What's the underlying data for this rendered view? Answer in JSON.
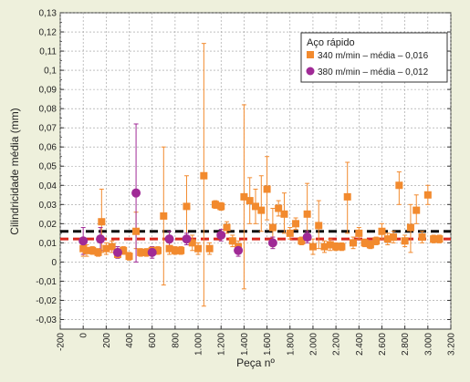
{
  "chart_data": {
    "type": "scatter",
    "xlabel": "Peça nº",
    "ylabel": "Cilindricidade média (mm)",
    "xlim": [
      -200,
      3200
    ],
    "ylim": [
      -0.035,
      0.13
    ],
    "x_ticks": [
      -200,
      0,
      200,
      400,
      600,
      800,
      1000,
      1200,
      1400,
      1600,
      1800,
      2000,
      2200,
      2400,
      2600,
      2800,
      3000,
      3200
    ],
    "x_tick_labels": [
      "-200",
      "0",
      "200",
      "400",
      "600",
      "800",
      "1.000",
      "1.200",
      "1.400",
      "1.600",
      "1.800",
      "2.000",
      "2.200",
      "2.400",
      "2.600",
      "2.800",
      "3.000",
      "3.200"
    ],
    "y_ticks": [
      -0.03,
      -0.02,
      -0.01,
      0,
      0.01,
      0.02,
      0.03,
      0.04,
      0.05,
      0.06,
      0.07,
      0.08,
      0.09,
      0.1,
      0.11,
      0.12,
      0.13
    ],
    "y_tick_labels": [
      "-0,03",
      "-0,02",
      "-0,01",
      "0",
      "0,01",
      "0,02",
      "0,03",
      "0,04",
      "0,05",
      "0,06",
      "0,07",
      "0,08",
      "0,09",
      "0,1",
      "0,11",
      "0,12",
      "0,13"
    ],
    "grid": true,
    "legend": {
      "title": "Aço rápido",
      "placement": "top-right"
    },
    "series": [
      {
        "name": "340 m/min – média – 0,016",
        "marker": "square",
        "color": "#f28a2e",
        "mean": 0.016,
        "points": [
          {
            "x": 0,
            "y": 0.007,
            "lo": 0.003,
            "hi": 0.012
          },
          {
            "x": 30,
            "y": 0.006,
            "lo": 0.003,
            "hi": 0.009
          },
          {
            "x": 80,
            "y": 0.006,
            "lo": 0.004,
            "hi": 0.008
          },
          {
            "x": 130,
            "y": 0.005,
            "lo": 0.003,
            "hi": 0.007
          },
          {
            "x": 160,
            "y": 0.021,
            "lo": 0.005,
            "hi": 0.038
          },
          {
            "x": 200,
            "y": 0.007,
            "lo": 0.004,
            "hi": 0.01
          },
          {
            "x": 250,
            "y": 0.008,
            "lo": 0.005,
            "hi": 0.011
          },
          {
            "x": 300,
            "y": 0.004,
            "lo": 0.002,
            "hi": 0.006
          },
          {
            "x": 350,
            "y": 0.006,
            "lo": 0.004,
            "hi": 0.008
          },
          {
            "x": 400,
            "y": 0.003,
            "lo": 0.001,
            "hi": 0.005
          },
          {
            "x": 460,
            "y": 0.016,
            "lo": 0.007,
            "hi": 0.026
          },
          {
            "x": 500,
            "y": 0.005,
            "lo": 0.003,
            "hi": 0.007
          },
          {
            "x": 550,
            "y": 0.005,
            "lo": 0.003,
            "hi": 0.007
          },
          {
            "x": 600,
            "y": 0.006,
            "lo": 0.004,
            "hi": 0.008
          },
          {
            "x": 650,
            "y": 0.006,
            "lo": 0.004,
            "hi": 0.008
          },
          {
            "x": 700,
            "y": 0.024,
            "lo": -0.012,
            "hi": 0.06
          },
          {
            "x": 750,
            "y": 0.007,
            "lo": 0.004,
            "hi": 0.01
          },
          {
            "x": 800,
            "y": 0.006,
            "lo": 0.004,
            "hi": 0.008
          },
          {
            "x": 850,
            "y": 0.006,
            "lo": 0.004,
            "hi": 0.008
          },
          {
            "x": 900,
            "y": 0.029,
            "lo": 0.012,
            "hi": 0.045
          },
          {
            "x": 950,
            "y": 0.01,
            "lo": 0.006,
            "hi": 0.014
          },
          {
            "x": 1000,
            "y": 0.007,
            "lo": 0.004,
            "hi": 0.01
          },
          {
            "x": 1050,
            "y": 0.045,
            "lo": -0.023,
            "hi": 0.114
          },
          {
            "x": 1100,
            "y": 0.007,
            "lo": 0.004,
            "hi": 0.01
          },
          {
            "x": 1150,
            "y": 0.03,
            "lo": 0.028,
            "hi": 0.032
          },
          {
            "x": 1200,
            "y": 0.029,
            "lo": 0.027,
            "hi": 0.031
          },
          {
            "x": 1250,
            "y": 0.018,
            "lo": 0.015,
            "hi": 0.021
          },
          {
            "x": 1300,
            "y": 0.011,
            "lo": 0.008,
            "hi": 0.014
          },
          {
            "x": 1350,
            "y": 0.008,
            "lo": 0.005,
            "hi": 0.011
          },
          {
            "x": 1400,
            "y": 0.034,
            "lo": -0.014,
            "hi": 0.082
          },
          {
            "x": 1450,
            "y": 0.032,
            "lo": 0.02,
            "hi": 0.044
          },
          {
            "x": 1500,
            "y": 0.029,
            "lo": 0.02,
            "hi": 0.038
          },
          {
            "x": 1550,
            "y": 0.027,
            "lo": 0.016,
            "hi": 0.045
          },
          {
            "x": 1600,
            "y": 0.038,
            "lo": 0.022,
            "hi": 0.055
          },
          {
            "x": 1650,
            "y": 0.018,
            "lo": 0.008,
            "hi": 0.028
          },
          {
            "x": 1700,
            "y": 0.028,
            "lo": 0.024,
            "hi": 0.032
          },
          {
            "x": 1750,
            "y": 0.025,
            "lo": 0.015,
            "hi": 0.036
          },
          {
            "x": 1800,
            "y": 0.015,
            "lo": 0.012,
            "hi": 0.018
          },
          {
            "x": 1850,
            "y": 0.02,
            "lo": 0.017,
            "hi": 0.023
          },
          {
            "x": 1900,
            "y": 0.011,
            "lo": 0.009,
            "hi": 0.013
          },
          {
            "x": 1950,
            "y": 0.025,
            "lo": 0.012,
            "hi": 0.041
          },
          {
            "x": 2000,
            "y": 0.008,
            "lo": 0.004,
            "hi": 0.012
          },
          {
            "x": 2050,
            "y": 0.019,
            "lo": 0.007,
            "hi": 0.032
          },
          {
            "x": 2100,
            "y": 0.008,
            "lo": 0.005,
            "hi": 0.011
          },
          {
            "x": 2150,
            "y": 0.009,
            "lo": 0.006,
            "hi": 0.012
          },
          {
            "x": 2200,
            "y": 0.008,
            "lo": 0.006,
            "hi": 0.01
          },
          {
            "x": 2250,
            "y": 0.008,
            "lo": 0.006,
            "hi": 0.01
          },
          {
            "x": 2300,
            "y": 0.034,
            "lo": 0.015,
            "hi": 0.052
          },
          {
            "x": 2350,
            "y": 0.01,
            "lo": 0.007,
            "hi": 0.013
          },
          {
            "x": 2400,
            "y": 0.015,
            "lo": 0.012,
            "hi": 0.018
          },
          {
            "x": 2450,
            "y": 0.01,
            "lo": 0.008,
            "hi": 0.012
          },
          {
            "x": 2500,
            "y": 0.009,
            "lo": 0.007,
            "hi": 0.011
          },
          {
            "x": 2550,
            "y": 0.011,
            "lo": 0.009,
            "hi": 0.013
          },
          {
            "x": 2600,
            "y": 0.016,
            "lo": 0.012,
            "hi": 0.02
          },
          {
            "x": 2650,
            "y": 0.012,
            "lo": 0.009,
            "hi": 0.015
          },
          {
            "x": 2700,
            "y": 0.013,
            "lo": 0.01,
            "hi": 0.016
          },
          {
            "x": 2750,
            "y": 0.04,
            "lo": 0.03,
            "hi": 0.047
          },
          {
            "x": 2800,
            "y": 0.011,
            "lo": 0.008,
            "hi": 0.014
          },
          {
            "x": 2850,
            "y": 0.018,
            "lo": 0.005,
            "hi": 0.03
          },
          {
            "x": 2900,
            "y": 0.027,
            "lo": 0.02,
            "hi": 0.035
          },
          {
            "x": 2950,
            "y": 0.013,
            "lo": 0.01,
            "hi": 0.016
          },
          {
            "x": 3000,
            "y": 0.035,
            "lo": 0.03,
            "hi": 0.04
          },
          {
            "x": 3050,
            "y": 0.012,
            "lo": 0.01,
            "hi": 0.014
          },
          {
            "x": 3100,
            "y": 0.012,
            "lo": 0.01,
            "hi": 0.014
          }
        ]
      },
      {
        "name": "380 m/min – média – 0,012",
        "marker": "circle",
        "color": "#a02a96",
        "mean": 0.012,
        "points": [
          {
            "x": 0,
            "y": 0.011,
            "lo": 0.004,
            "hi": 0.018
          },
          {
            "x": 150,
            "y": 0.012,
            "lo": 0.006,
            "hi": 0.018
          },
          {
            "x": 300,
            "y": 0.005,
            "lo": 0.002,
            "hi": 0.008
          },
          {
            "x": 460,
            "y": 0.036,
            "lo": 0.0,
            "hi": 0.072
          },
          {
            "x": 600,
            "y": 0.005,
            "lo": 0.002,
            "hi": 0.008
          },
          {
            "x": 750,
            "y": 0.012,
            "lo": 0.008,
            "hi": 0.016
          },
          {
            "x": 900,
            "y": 0.012,
            "lo": 0.009,
            "hi": 0.015
          },
          {
            "x": 1200,
            "y": 0.014,
            "lo": 0.011,
            "hi": 0.017
          },
          {
            "x": 1350,
            "y": 0.006,
            "lo": 0.003,
            "hi": 0.009
          },
          {
            "x": 1650,
            "y": 0.01,
            "lo": 0.007,
            "hi": 0.013
          },
          {
            "x": 1950,
            "y": 0.013,
            "lo": 0.01,
            "hi": 0.016
          }
        ]
      }
    ]
  }
}
